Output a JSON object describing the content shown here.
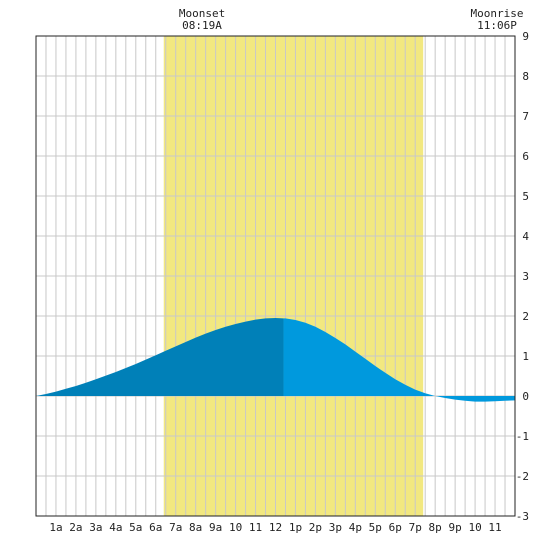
{
  "chart_data": {
    "type": "area",
    "title": "",
    "xlabel": "",
    "ylabel": "",
    "x_unit": "hour of day",
    "xlim": [
      0,
      24
    ],
    "ylim": [
      -3,
      9
    ],
    "y_ticks": [
      "-3",
      "-2",
      "-1",
      "0",
      "1",
      "2",
      "3",
      "4",
      "5",
      "6",
      "7",
      "8",
      "9"
    ],
    "x_ticks": [
      {
        "x": 1,
        "label": "1a"
      },
      {
        "x": 2,
        "label": "2a"
      },
      {
        "x": 3,
        "label": "3a"
      },
      {
        "x": 4,
        "label": "4a"
      },
      {
        "x": 5,
        "label": "5a"
      },
      {
        "x": 6,
        "label": "6a"
      },
      {
        "x": 7,
        "label": "7a"
      },
      {
        "x": 8,
        "label": "8a"
      },
      {
        "x": 9,
        "label": "9a"
      },
      {
        "x": 10,
        "label": "10"
      },
      {
        "x": 11,
        "label": "11"
      },
      {
        "x": 12,
        "label": "12"
      },
      {
        "x": 13,
        "label": "1p"
      },
      {
        "x": 14,
        "label": "2p"
      },
      {
        "x": 15,
        "label": "3p"
      },
      {
        "x": 16,
        "label": "4p"
      },
      {
        "x": 17,
        "label": "5p"
      },
      {
        "x": 18,
        "label": "6p"
      },
      {
        "x": 19,
        "label": "7p"
      },
      {
        "x": 20,
        "label": "8p"
      },
      {
        "x": 21,
        "label": "9p"
      },
      {
        "x": 22,
        "label": "10"
      },
      {
        "x": 23,
        "label": "11"
      }
    ],
    "daylight": {
      "start": 6.4,
      "end": 19.4
    },
    "tide_shift": 12.4,
    "grid": true,
    "series": [
      {
        "values": [
          [
            0,
            0.0
          ],
          [
            0.5,
            0.05
          ],
          [
            1,
            0.11
          ],
          [
            1.5,
            0.18
          ],
          [
            2,
            0.25
          ],
          [
            2.5,
            0.33
          ],
          [
            3,
            0.42
          ],
          [
            3.5,
            0.51
          ],
          [
            4,
            0.6
          ],
          [
            4.5,
            0.7
          ],
          [
            5,
            0.8
          ],
          [
            5.5,
            0.91
          ],
          [
            6,
            1.02
          ],
          [
            6.5,
            1.13
          ],
          [
            7,
            1.24
          ],
          [
            7.5,
            1.35
          ],
          [
            8,
            1.46
          ],
          [
            8.5,
            1.56
          ],
          [
            9,
            1.65
          ],
          [
            9.5,
            1.73
          ],
          [
            10,
            1.8
          ],
          [
            10.5,
            1.86
          ],
          [
            11,
            1.91
          ],
          [
            11.5,
            1.94
          ],
          [
            12,
            1.95
          ],
          [
            12.5,
            1.94
          ],
          [
            13,
            1.9
          ],
          [
            13.5,
            1.83
          ],
          [
            14,
            1.73
          ],
          [
            14.5,
            1.6
          ],
          [
            15,
            1.45
          ],
          [
            15.5,
            1.29
          ],
          [
            16,
            1.11
          ],
          [
            16.5,
            0.93
          ],
          [
            17,
            0.75
          ],
          [
            17.5,
            0.58
          ],
          [
            18,
            0.42
          ],
          [
            18.5,
            0.28
          ],
          [
            19,
            0.16
          ],
          [
            19.5,
            0.07
          ],
          [
            20,
            0.0
          ],
          [
            20.5,
            -0.05
          ],
          [
            21,
            -0.09
          ],
          [
            21.5,
            -0.12
          ],
          [
            22,
            -0.14
          ],
          [
            22.5,
            -0.14
          ],
          [
            23,
            -0.13
          ],
          [
            23.5,
            -0.12
          ],
          [
            24,
            -0.11
          ]
        ]
      }
    ]
  },
  "annotations": {
    "moonset": {
      "label": "Moonset",
      "time": "08:19A",
      "x": 8.32
    },
    "moonrise": {
      "label": "Moonrise",
      "time": "11:06P",
      "x": 23.1
    }
  },
  "colors": {
    "daylight": "#f2e880",
    "tide_before": "#0080b8",
    "tide_after": "#0099dd",
    "grid": "#c8c8c8",
    "frame": "#222222"
  }
}
